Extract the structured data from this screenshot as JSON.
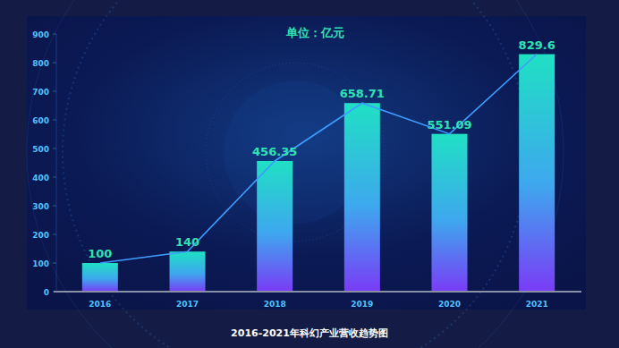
{
  "chart_data": {
    "type": "bar",
    "title": "2016-2021年科幻产业营收趋势图",
    "subtitle": "单位：亿元",
    "categories": [
      "2016",
      "2017",
      "2018",
      "2019",
      "2020",
      "2021"
    ],
    "values": [
      100,
      140,
      456.35,
      658.71,
      551.09,
      829.6
    ],
    "color": "#1fe0c4",
    "ylim": [
      0,
      900
    ],
    "yticks": [
      0,
      100,
      200,
      300,
      400,
      500,
      600,
      700,
      800,
      900
    ],
    "grid": false,
    "data_labels": true,
    "line_style": "solid"
  }
}
